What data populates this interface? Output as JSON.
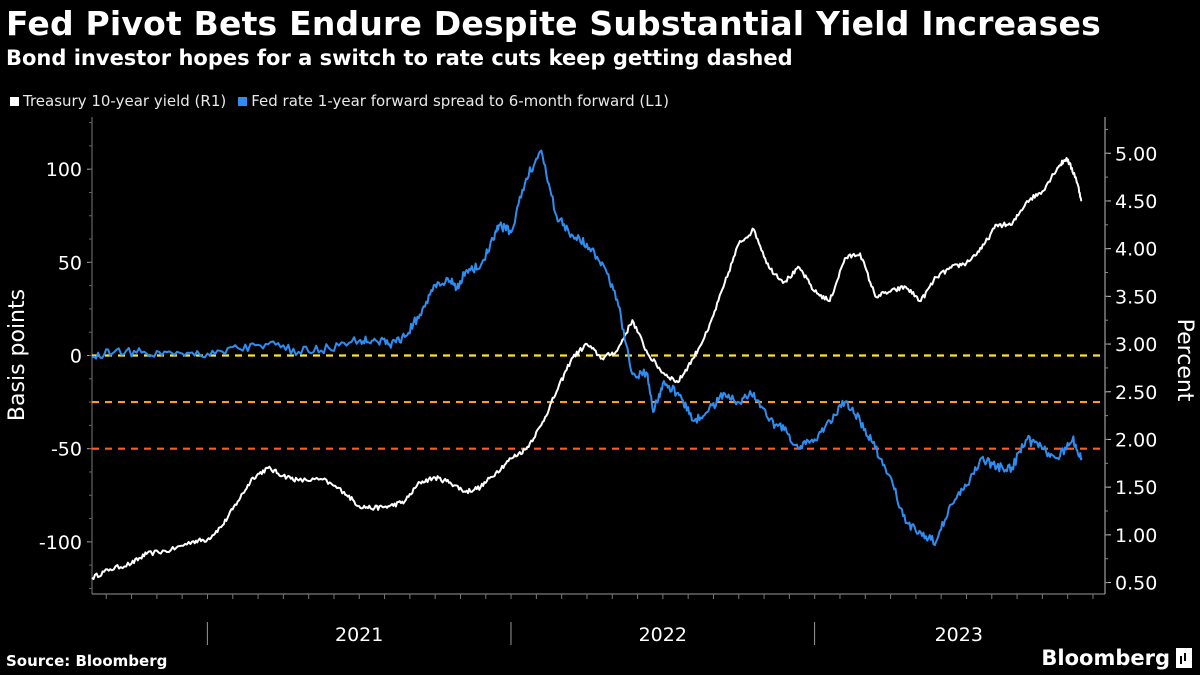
{
  "header": {
    "title": "Fed Pivot Bets Endure Despite Substantial Yield Increases",
    "subtitle": "Bond investor hopes for a switch to rate cuts keep getting dashed"
  },
  "legend": {
    "items": [
      {
        "label": "Treasury 10-year yield (R1)",
        "color": "#ffffff"
      },
      {
        "label": "Fed rate 1-year forward spread to 6-month forward (L1)",
        "color": "#2f8cf0"
      }
    ]
  },
  "footer": {
    "source": "Source: Bloomberg",
    "brand": "Bloomberg"
  },
  "chart_data": {
    "type": "line",
    "title": "Fed Pivot Bets Endure Despite Substantial Yield Increases",
    "x_range": [
      "2020-08",
      "2023-11"
    ],
    "x_tick_labels": [
      "2021",
      "2022",
      "2023"
    ],
    "left_axis": {
      "label": "Basis points",
      "ylim": [
        -128,
        128
      ],
      "ticks": [
        -100,
        -50,
        0,
        50,
        100
      ],
      "tick_labels": [
        "-100",
        "-50",
        "0",
        "50",
        "100"
      ]
    },
    "right_axis": {
      "label": "Percent",
      "ylim": [
        0.38,
        5.38
      ],
      "ticks": [
        0.5,
        1.0,
        1.5,
        2.0,
        2.5,
        3.0,
        3.5,
        4.0,
        4.5,
        5.0
      ],
      "tick_labels": [
        "0.50",
        "1.00",
        "1.50",
        "2.00",
        "2.50",
        "3.00",
        "3.50",
        "4.00",
        "4.50",
        "5.00"
      ]
    },
    "reference_lines": [
      {
        "value": 0,
        "axis": "left",
        "color": "#ffe135"
      },
      {
        "value": -25,
        "axis": "left",
        "color": "#ff9a1f"
      },
      {
        "value": -50,
        "axis": "left",
        "color": "#ff5a26"
      }
    ],
    "series": [
      {
        "name": "Treasury 10-year yield (R1)",
        "axis": "right",
        "color": "#ffffff",
        "t": [
          2020.62,
          2020.68,
          2020.75,
          2020.8,
          2020.88,
          2020.95,
          2021.0,
          2021.05,
          2021.1,
          2021.15,
          2021.2,
          2021.25,
          2021.3,
          2021.38,
          2021.45,
          2021.5,
          2021.55,
          2021.6,
          2021.65,
          2021.7,
          2021.75,
          2021.8,
          2021.85,
          2021.9,
          2021.95,
          2022.0,
          2022.05,
          2022.1,
          2022.15,
          2022.2,
          2022.25,
          2022.3,
          2022.35,
          2022.4,
          2022.45,
          2022.5,
          2022.55,
          2022.6,
          2022.65,
          2022.7,
          2022.75,
          2022.8,
          2022.85,
          2022.9,
          2022.95,
          2023.0,
          2023.05,
          2023.1,
          2023.15,
          2023.2,
          2023.25,
          2023.3,
          2023.35,
          2023.4,
          2023.45,
          2023.5,
          2023.55,
          2023.6,
          2023.65,
          2023.7,
          2023.75,
          2023.8,
          2023.83,
          2023.86,
          2023.88
        ],
        "values": [
          0.55,
          0.64,
          0.7,
          0.8,
          0.84,
          0.93,
          0.95,
          1.1,
          1.35,
          1.6,
          1.7,
          1.62,
          1.57,
          1.58,
          1.45,
          1.3,
          1.28,
          1.3,
          1.35,
          1.55,
          1.6,
          1.55,
          1.45,
          1.5,
          1.65,
          1.8,
          1.9,
          2.15,
          2.5,
          2.85,
          3.0,
          2.85,
          2.93,
          3.25,
          2.9,
          2.7,
          2.6,
          2.85,
          3.15,
          3.6,
          4.05,
          4.2,
          3.8,
          3.65,
          3.8,
          3.55,
          3.45,
          3.9,
          3.95,
          3.5,
          3.55,
          3.6,
          3.45,
          3.7,
          3.8,
          3.85,
          4.0,
          4.25,
          4.25,
          4.5,
          4.6,
          4.85,
          4.95,
          4.75,
          4.5
        ]
      },
      {
        "name": "Fed rate 1-year forward spread to 6-month forward (L1)",
        "axis": "left",
        "color": "#2f8cf0",
        "t": [
          2020.62,
          2020.7,
          2020.8,
          2020.9,
          2021.0,
          2021.1,
          2021.2,
          2021.3,
          2021.4,
          2021.5,
          2021.55,
          2021.6,
          2021.65,
          2021.7,
          2021.75,
          2021.8,
          2021.82,
          2021.85,
          2021.9,
          2021.93,
          2021.96,
          2022.0,
          2022.05,
          2022.1,
          2022.15,
          2022.2,
          2022.25,
          2022.3,
          2022.35,
          2022.4,
          2022.45,
          2022.47,
          2022.5,
          2022.55,
          2022.6,
          2022.65,
          2022.7,
          2022.75,
          2022.8,
          2022.85,
          2022.9,
          2022.95,
          2023.0,
          2023.05,
          2023.1,
          2023.15,
          2023.2,
          2023.25,
          2023.3,
          2023.35,
          2023.4,
          2023.45,
          2023.5,
          2023.55,
          2023.6,
          2023.65,
          2023.7,
          2023.75,
          2023.8,
          2023.85,
          2023.88
        ],
        "values": [
          -1,
          3,
          1,
          2,
          1,
          4,
          6,
          2,
          4,
          8,
          9,
          6,
          10,
          22,
          38,
          40,
          36,
          45,
          48,
          58,
          70,
          66,
          95,
          110,
          75,
          65,
          60,
          50,
          30,
          -10,
          -10,
          -30,
          -15,
          -20,
          -35,
          -30,
          -20,
          -25,
          -20,
          -35,
          -40,
          -50,
          -45,
          -35,
          -25,
          -35,
          -50,
          -65,
          -90,
          -95,
          -100,
          -80,
          -70,
          -55,
          -60,
          -60,
          -45,
          -50,
          -55,
          -45,
          -55
        ]
      }
    ]
  }
}
